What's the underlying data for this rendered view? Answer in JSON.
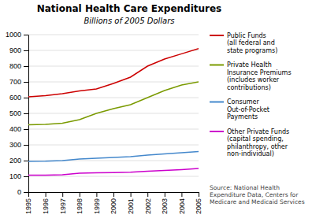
{
  "chart_data": {
    "type": "line",
    "title": "National Health Care Expenditures",
    "subtitle": "Billions of 2005 Dollars",
    "annotations": [
      "Source: National Health\nExpenditure Data, Centers for\nMedicare and Medicaid Services"
    ],
    "x": [
      1995,
      1996,
      1997,
      1998,
      1999,
      2000,
      2001,
      2002,
      2003,
      2004,
      2005
    ],
    "series": [
      {
        "name": "Public Funds\n(all federal and\nstate programs)",
        "color": "#cc0000",
        "values": [
          605,
          612,
          625,
          643,
          655,
          690,
          730,
          800,
          845,
          878,
          912
        ]
      },
      {
        "name": "Private Health\nInsurance Premiums\n(includes worker\ncontributions)",
        "color": "#7a9a00",
        "values": [
          427,
          430,
          437,
          460,
          500,
          530,
          555,
          600,
          645,
          680,
          700
        ]
      },
      {
        "name": "Consumer\nOut-of-Pocket\nPayments",
        "color": "#4488cc",
        "values": [
          195,
          196,
          200,
          210,
          215,
          220,
          225,
          235,
          242,
          250,
          258
        ]
      },
      {
        "name": "Other Private Funds\n(capital spending,\nphilanthropy, other\nnon-individual)",
        "color": "#cc00cc",
        "values": [
          108,
          108,
          110,
          120,
          122,
          124,
          126,
          132,
          138,
          143,
          150
        ]
      }
    ],
    "xlim": [
      1995,
      2005
    ],
    "xticks": [
      1995,
      1996,
      1997,
      1998,
      1999,
      2000,
      2001,
      2002,
      2003,
      2004,
      2005
    ],
    "ylim": [
      0,
      1000
    ],
    "yticks": [
      0,
      100,
      200,
      300,
      400,
      500,
      600,
      700,
      800,
      900,
      1000
    ],
    "grid": true,
    "legend": "right"
  }
}
